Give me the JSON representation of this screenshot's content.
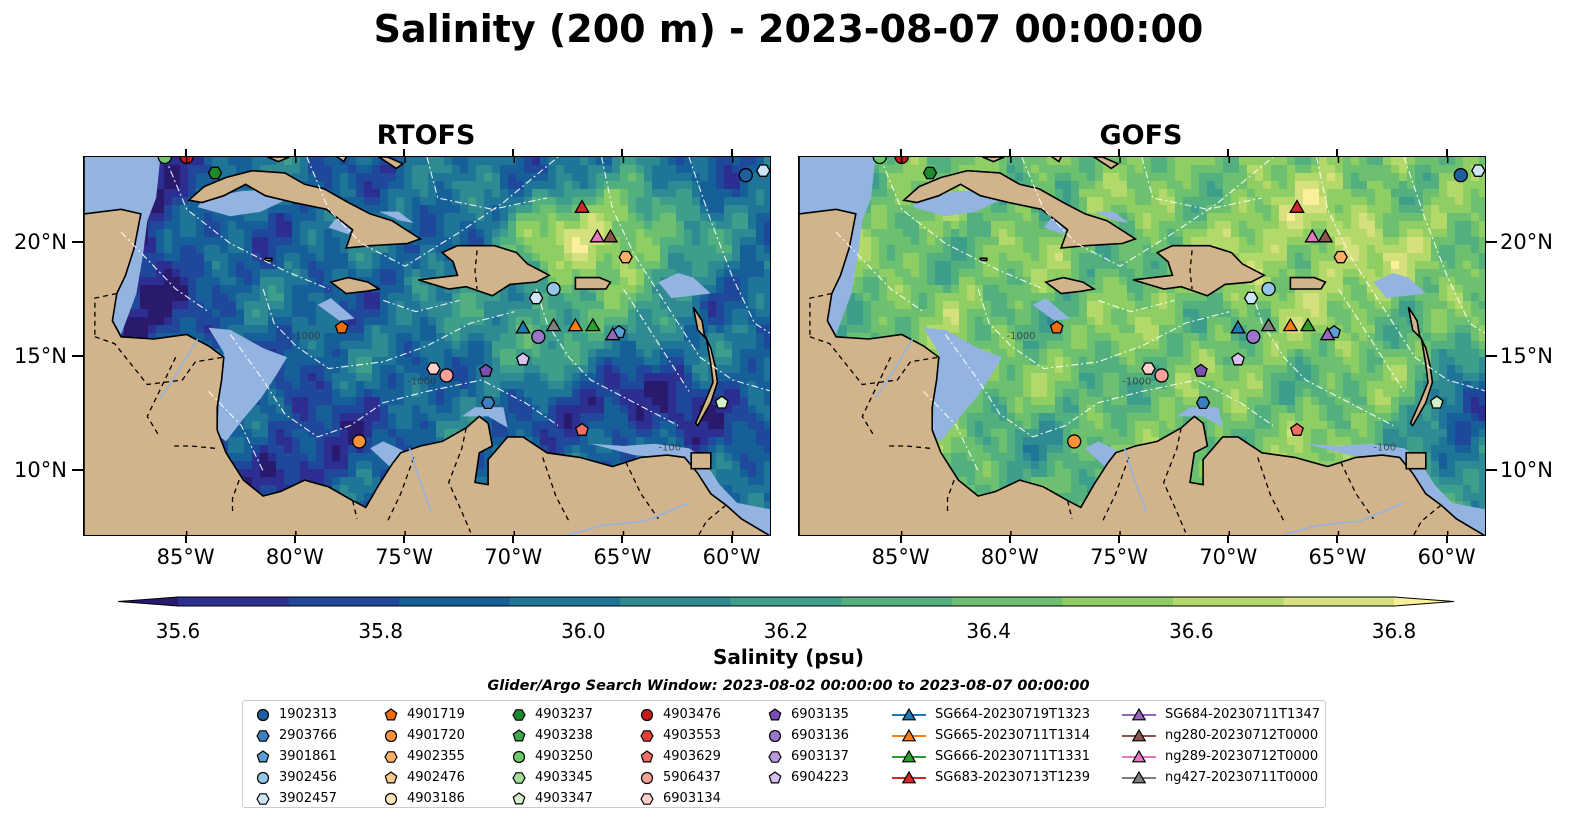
{
  "title": "Salinity (200 m) - 2023-08-07 00:00:00",
  "panels": [
    {
      "title": "RTOFS"
    },
    {
      "title": "GOFS"
    }
  ],
  "map_extent": {
    "lon": [
      -89.7,
      -58.2
    ],
    "lat": [
      7.1,
      23.8
    ]
  },
  "x_ticks": [
    "85°W",
    "80°W",
    "75°W",
    "70°W",
    "65°W",
    "60°W"
  ],
  "x_tick_values": [
    -85,
    -80,
    -75,
    -70,
    -65,
    -60
  ],
  "y_ticks": [
    "20°N",
    "15°N",
    "10°N"
  ],
  "y_tick_values": [
    20,
    15,
    10
  ],
  "contour_labels": [
    "-1000",
    "-100",
    "-1000"
  ],
  "colorbar": {
    "label": "Salinity (psu)",
    "ticks": [
      "35.6",
      "35.8",
      "36.0",
      "36.2",
      "36.4",
      "36.6",
      "36.8"
    ],
    "tick_values": [
      35.6,
      35.8,
      36.0,
      36.2,
      36.4,
      36.6,
      36.8
    ],
    "range": [
      35.5,
      36.9
    ],
    "colors": [
      "#2a1a6e",
      "#2c2f91",
      "#20489a",
      "#16609a",
      "#1f7598",
      "#2f8a94",
      "#3e9e8c",
      "#52b07e",
      "#6cc06f",
      "#8ece62",
      "#b2d96a",
      "#d6e07e",
      "#faf09c"
    ]
  },
  "legend": {
    "title": "Glider/Argo Search Window: 2023-08-02 00:00:00 to 2023-08-07 00:00:00",
    "columns": [
      [
        {
          "label": "1902313",
          "marker": "circle",
          "color": "#1f5fa0"
        },
        {
          "label": "2903766",
          "marker": "hexagon",
          "color": "#3a7fc0"
        },
        {
          "label": "3901861",
          "marker": "pentagon",
          "color": "#5a9ed6"
        },
        {
          "label": "3902456",
          "marker": "circle",
          "color": "#94c6e8"
        },
        {
          "label": "3902457",
          "marker": "hexagon",
          "color": "#cde6f7"
        }
      ],
      [
        {
          "label": "4901719",
          "marker": "pentagon",
          "color": "#ee6c0c"
        },
        {
          "label": "4901720",
          "marker": "circle",
          "color": "#f7923a"
        },
        {
          "label": "4902355",
          "marker": "hexagon",
          "color": "#fbb068"
        },
        {
          "label": "4902476",
          "marker": "pentagon",
          "color": "#fcc98f"
        },
        {
          "label": "4903186",
          "marker": "circle",
          "color": "#fde2c0"
        }
      ],
      [
        {
          "label": "4903237",
          "marker": "hexagon",
          "color": "#1d8a2c"
        },
        {
          "label": "4903238",
          "marker": "pentagon",
          "color": "#3ea94a"
        },
        {
          "label": "4903250",
          "marker": "circle",
          "color": "#6cc66a"
        },
        {
          "label": "4903345",
          "marker": "hexagon",
          "color": "#a3dd98"
        },
        {
          "label": "4903347",
          "marker": "pentagon",
          "color": "#d3f1c8"
        }
      ],
      [
        {
          "label": "4903476",
          "marker": "circle",
          "color": "#c41a1a"
        },
        {
          "label": "4903553",
          "marker": "hexagon",
          "color": "#e0403a"
        },
        {
          "label": "4903629",
          "marker": "pentagon",
          "color": "#ee6e66"
        },
        {
          "label": "5906437",
          "marker": "circle",
          "color": "#f7a19a"
        },
        {
          "label": "6903134",
          "marker": "hexagon",
          "color": "#fcd0cb"
        }
      ],
      [
        {
          "label": "6903135",
          "marker": "pentagon",
          "color": "#7b4fb0"
        },
        {
          "label": "6903136",
          "marker": "circle",
          "color": "#9a75c8"
        },
        {
          "label": "6903137",
          "marker": "hexagon",
          "color": "#b89ad9"
        },
        {
          "label": "6904223",
          "marker": "pentagon",
          "color": "#d7c2ee"
        }
      ],
      [
        {
          "label": "SG664-20230719T1323",
          "marker": "triangle",
          "color": "#1f77b4"
        },
        {
          "label": "SG665-20230711T1314",
          "marker": "triangle",
          "color": "#ff7f0e"
        },
        {
          "label": "SG666-20230711T1331",
          "marker": "triangle",
          "color": "#2ca02c"
        },
        {
          "label": "SG683-20230713T1239",
          "marker": "triangle",
          "color": "#d62728"
        }
      ],
      [
        {
          "label": "SG684-20230711T1347",
          "marker": "triangle",
          "color": "#9467bd"
        },
        {
          "label": "ng280-20230712T0000",
          "marker": "triangle",
          "color": "#8c564b"
        },
        {
          "label": "ng289-20230712T0000",
          "marker": "triangle",
          "color": "#e377c2"
        },
        {
          "label": "ng427-20230711T0000",
          "marker": "triangle",
          "color": "#7f7f7f"
        }
      ]
    ]
  },
  "observations": [
    {
      "id": "1902313",
      "lon": -59.4,
      "lat": 23.0
    },
    {
      "id": "3902457",
      "lon": -58.6,
      "lat": 23.2
    },
    {
      "id": "4903237",
      "lon": -83.7,
      "lat": 23.1
    },
    {
      "id": "4903476",
      "lon": -85.0,
      "lat": 23.8
    },
    {
      "id": "4903250",
      "lon": -86.0,
      "lat": 23.8
    },
    {
      "id": "4902355",
      "lon": -64.9,
      "lat": 19.4
    },
    {
      "id": "3902456",
      "lon": -68.2,
      "lat": 18.0
    },
    {
      "id": "3902457",
      "lon": -69.0,
      "lat": 17.6
    },
    {
      "id": "4901719",
      "lon": -77.9,
      "lat": 16.3
    },
    {
      "id": "6903136",
      "lon": -68.9,
      "lat": 15.9
    },
    {
      "id": "3901861",
      "lon": -65.2,
      "lat": 16.1
    },
    {
      "id": "6904223",
      "lon": -69.6,
      "lat": 14.9
    },
    {
      "id": "6903135",
      "lon": -71.3,
      "lat": 14.4
    },
    {
      "id": "6903134",
      "lon": -73.7,
      "lat": 14.5
    },
    {
      "id": "5906437",
      "lon": -73.1,
      "lat": 14.2
    },
    {
      "id": "2903766",
      "lon": -71.2,
      "lat": 13.0
    },
    {
      "id": "4903347",
      "lon": -60.5,
      "lat": 13.0
    },
    {
      "id": "4901720",
      "lon": -77.1,
      "lat": 11.3
    },
    {
      "id": "4903629",
      "lon": -66.9,
      "lat": 11.8
    },
    {
      "id": "SG683-20230713T1239",
      "lon": -66.9,
      "lat": 21.6
    },
    {
      "id": "ng289-20230712T0000",
      "lon": -66.2,
      "lat": 20.3
    },
    {
      "id": "ng280-20230712T0000",
      "lon": -65.6,
      "lat": 20.3
    },
    {
      "id": "SG664-20230719T1323",
      "lon": -69.6,
      "lat": 16.3
    },
    {
      "id": "ng427-20230711T0000",
      "lon": -68.2,
      "lat": 16.4
    },
    {
      "id": "SG665-20230711T1314",
      "lon": -67.2,
      "lat": 16.4
    },
    {
      "id": "SG666-20230711T1331",
      "lon": -66.4,
      "lat": 16.4
    },
    {
      "id": "SG684-20230711T1347",
      "lon": -65.5,
      "lat": 16.0
    }
  ]
}
